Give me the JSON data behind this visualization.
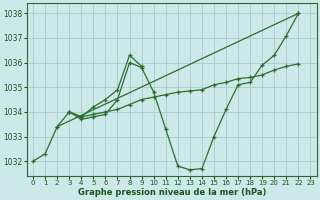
{
  "bg_color": "#cce8e8",
  "grid_color": "#aacccc",
  "line_color": "#2d6e2d",
  "marker_color": "#2d6e2d",
  "xlabel": "Graphe pression niveau de la mer (hPa)",
  "xlabel_color": "#1a5520",
  "ylabel_color": "#1a5520",
  "xlim": [
    -0.5,
    23.5
  ],
  "ylim": [
    1031.4,
    1038.4
  ],
  "yticks": [
    1032,
    1033,
    1034,
    1035,
    1036,
    1037,
    1038
  ],
  "xticks": [
    0,
    1,
    2,
    3,
    4,
    5,
    6,
    7,
    8,
    9,
    10,
    11,
    12,
    13,
    14,
    15,
    16,
    17,
    18,
    19,
    20,
    21,
    22,
    23
  ],
  "series": [
    {
      "x": [
        0,
        1,
        2,
        3,
        4,
        5,
        6,
        7,
        8,
        9,
        10,
        11,
        12,
        13,
        14,
        15,
        16,
        17,
        18,
        19,
        20,
        21,
        22
      ],
      "y": [
        1032.0,
        1032.3,
        1033.4,
        1034.0,
        1033.7,
        1033.8,
        1033.9,
        1034.5,
        1036.0,
        1035.8,
        1034.8,
        1033.3,
        1031.8,
        1031.65,
        1031.7,
        1033.0,
        1034.1,
        1035.1,
        1035.2,
        1035.9,
        1036.3,
        1037.1,
        1038.0
      ]
    },
    {
      "x": [
        2,
        22
      ],
      "y": [
        1033.4,
        1038.0
      ]
    },
    {
      "x": [
        3,
        4,
        5,
        6,
        7,
        8,
        9
      ],
      "y": [
        1034.0,
        1033.8,
        1034.2,
        1034.5,
        1034.9,
        1036.3,
        1035.85
      ]
    },
    {
      "x": [
        3,
        4,
        5,
        6,
        7,
        8,
        9,
        10,
        11,
        12,
        13,
        14,
        15,
        16,
        17,
        18,
        19,
        20,
        21,
        22
      ],
      "y": [
        1034.0,
        1033.8,
        1033.9,
        1034.0,
        1034.1,
        1034.3,
        1034.5,
        1034.6,
        1034.7,
        1034.8,
        1034.85,
        1034.9,
        1035.1,
        1035.2,
        1035.35,
        1035.4,
        1035.5,
        1035.7,
        1035.85,
        1035.95
      ]
    }
  ]
}
